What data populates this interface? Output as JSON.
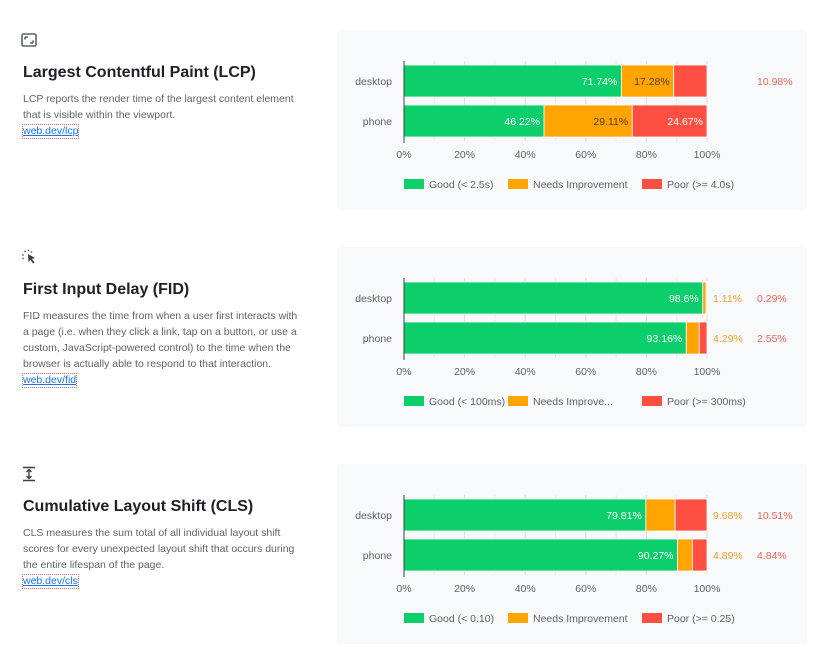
{
  "colors": {
    "good": "#0cce6b",
    "needs_improvement": "#ffa400",
    "poor": "#ff4e42",
    "poor_label": "#e8655a",
    "ni_label": "#f0a030"
  },
  "metrics": [
    {
      "icon": "lcp-expand-icon",
      "title": "Largest Contentful Paint (LCP)",
      "description": "LCP reports the render time of the largest content element that is visible within the viewport.",
      "link": "web.dev/lcp"
    },
    {
      "icon": "fid-click-icon",
      "title": "First Input Delay (FID)",
      "description": "FID measures the time from when a user first interacts with a page (i.e. when they click a link, tap on a button, or use a custom, JavaScript-powered control) to the time when the browser is actually able to respond to that interaction.",
      "link": "web.dev/fid"
    },
    {
      "icon": "cls-shift-icon",
      "title": "Cumulative Layout Shift (CLS)",
      "description": "CLS measures the sum total of all individual layout shift scores for every unexpected layout shift that occurs during the entire lifespan of the page.",
      "link": "web.dev/cls"
    }
  ],
  "chart_data": [
    {
      "type": "bar",
      "stacked": true,
      "orientation": "horizontal",
      "title": "LCP",
      "categories": [
        "desktop",
        "phone"
      ],
      "series": [
        {
          "name": "Good (< 2.5s)",
          "values": [
            71.74,
            46.22
          ],
          "labels": [
            "71.74%",
            "46.22%"
          ]
        },
        {
          "name": "Needs Improvement",
          "values": [
            17.28,
            29.11
          ],
          "labels": [
            "17.28%",
            "29.11%"
          ]
        },
        {
          "name": "Poor (>= 4.0s)",
          "values": [
            10.98,
            24.67
          ],
          "labels": [
            "10.98%",
            "24.67%"
          ]
        }
      ],
      "xticks": [
        "0%",
        "20%",
        "40%",
        "60%",
        "80%",
        "100%"
      ],
      "xlim": [
        0,
        100
      ],
      "grid": true,
      "legend": "bottom"
    },
    {
      "type": "bar",
      "stacked": true,
      "orientation": "horizontal",
      "title": "FID",
      "categories": [
        "desktop",
        "phone"
      ],
      "series": [
        {
          "name": "Good (< 100ms)",
          "values": [
            98.6,
            93.16
          ],
          "labels": [
            "98.6%",
            "93.16%"
          ]
        },
        {
          "name": "Needs Improve...",
          "values": [
            1.11,
            4.29
          ],
          "labels": [
            "1.11%",
            "4.29%"
          ]
        },
        {
          "name": "Poor (>= 300ms)",
          "values": [
            0.29,
            2.55
          ],
          "labels": [
            "0.29%",
            "2.55%"
          ]
        }
      ],
      "xticks": [
        "0%",
        "20%",
        "40%",
        "60%",
        "80%",
        "100%"
      ],
      "xlim": [
        0,
        100
      ],
      "grid": true,
      "legend": "bottom"
    },
    {
      "type": "bar",
      "stacked": true,
      "orientation": "horizontal",
      "title": "CLS",
      "categories": [
        "desktop",
        "phone"
      ],
      "series": [
        {
          "name": "Good (< 0.10)",
          "values": [
            79.81,
            90.27
          ],
          "labels": [
            "79.81%",
            "90.27%"
          ]
        },
        {
          "name": "Needs Improvement",
          "values": [
            9.68,
            4.89
          ],
          "labels": [
            "9.68%",
            "4.89%"
          ]
        },
        {
          "name": "Poor (>= 0.25)",
          "values": [
            10.51,
            4.84
          ],
          "labels": [
            "10.51%",
            "4.84%"
          ]
        }
      ],
      "xticks": [
        "0%",
        "20%",
        "40%",
        "60%",
        "80%",
        "100%"
      ],
      "xlim": [
        0,
        100
      ],
      "grid": true,
      "legend": "bottom"
    }
  ]
}
